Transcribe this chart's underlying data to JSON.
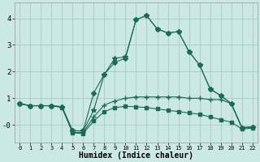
{
  "xlabel": "Humidex (Indice chaleur)",
  "background_color": "#cce8e4",
  "grid_color": "#aacfca",
  "line_color": "#1a6b5a",
  "xlim": [
    -0.5,
    22.5
  ],
  "ylim": [
    -0.65,
    4.6
  ],
  "xticks": [
    0,
    1,
    2,
    3,
    4,
    5,
    6,
    7,
    8,
    9,
    10,
    11,
    12,
    13,
    14,
    15,
    16,
    17,
    18,
    19,
    20,
    21,
    22
  ],
  "yticks": [
    0,
    1,
    2,
    3,
    4
  ],
  "ytick_labels": [
    "-0",
    "1",
    "2",
    "3",
    "4"
  ],
  "lines": [
    {
      "x": [
        0,
        1,
        2,
        3,
        4,
        5,
        6,
        7,
        8,
        9,
        10,
        11,
        12,
        13,
        14,
        15,
        16,
        17,
        18,
        19,
        20,
        21,
        22
      ],
      "y": [
        0.8,
        0.72,
        0.72,
        0.72,
        0.68,
        -0.22,
        -0.22,
        0.55,
        1.9,
        2.5,
        2.55,
        3.95,
        4.1,
        3.6,
        3.45,
        3.5,
        2.75,
        2.25,
        1.35,
        1.1,
        0.8,
        -0.1,
        -0.08
      ],
      "marker": "*",
      "ms": 4
    },
    {
      "x": [
        0,
        1,
        2,
        3,
        4,
        5,
        6,
        7,
        8,
        9,
        10,
        11,
        12,
        13,
        14,
        15,
        16,
        17,
        18,
        19,
        20,
        21,
        22
      ],
      "y": [
        0.8,
        0.72,
        0.72,
        0.72,
        0.68,
        -0.22,
        -0.22,
        1.2,
        1.9,
        2.35,
        2.5,
        3.95,
        4.1,
        3.6,
        3.45,
        3.5,
        2.75,
        2.25,
        1.35,
        1.1,
        0.8,
        -0.1,
        -0.08
      ],
      "marker": "D",
      "ms": 3
    },
    {
      "x": [
        0,
        1,
        2,
        3,
        4,
        5,
        6,
        7,
        8,
        9,
        10,
        11,
        12,
        13,
        14,
        15,
        16,
        17,
        18,
        19,
        20,
        21,
        22
      ],
      "y": [
        0.8,
        0.72,
        0.72,
        0.72,
        0.68,
        -0.28,
        -0.28,
        0.3,
        0.75,
        0.9,
        1.0,
        1.05,
        1.05,
        1.05,
        1.05,
        1.05,
        1.0,
        1.0,
        0.95,
        0.95,
        0.8,
        -0.1,
        -0.08
      ],
      "marker": "+",
      "ms": 4
    },
    {
      "x": [
        0,
        1,
        2,
        3,
        4,
        5,
        6,
        7,
        8,
        9,
        10,
        11,
        12,
        13,
        14,
        15,
        16,
        17,
        18,
        19,
        20,
        21,
        22
      ],
      "y": [
        0.8,
        0.72,
        0.72,
        0.72,
        0.65,
        -0.3,
        -0.32,
        0.15,
        0.5,
        0.65,
        0.7,
        0.68,
        0.65,
        0.6,
        0.55,
        0.5,
        0.45,
        0.4,
        0.3,
        0.2,
        0.1,
        -0.15,
        -0.12
      ],
      "marker": "s",
      "ms": 2.5
    }
  ]
}
